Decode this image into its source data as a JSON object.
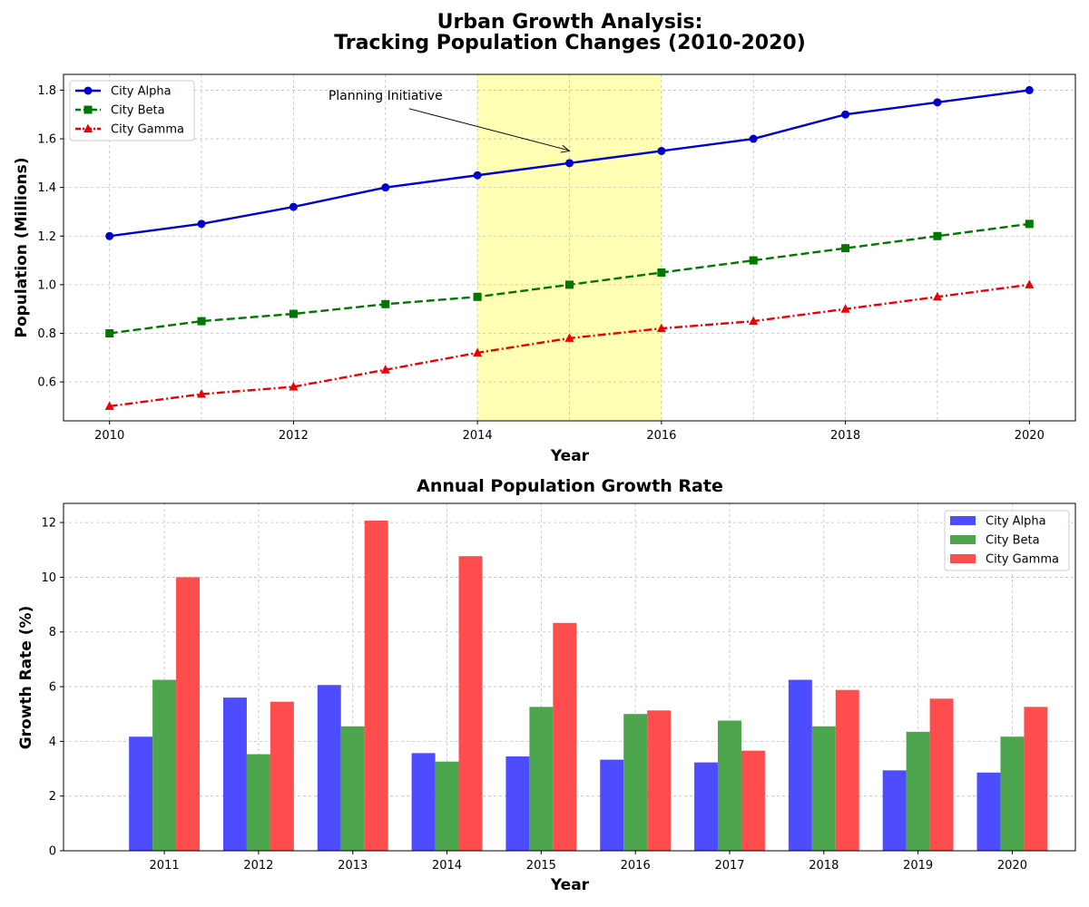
{
  "figure": {
    "title_line1": "Urban Growth Analysis:",
    "title_line2": "Tracking Population Changes (2010-2020)"
  },
  "chart_data": [
    {
      "type": "line",
      "title": "",
      "xlabel": "Year",
      "ylabel": "Population (Millions)",
      "x": [
        2010,
        2011,
        2012,
        2013,
        2014,
        2015,
        2016,
        2017,
        2018,
        2019,
        2020
      ],
      "xlim": [
        2009.5,
        2020.5
      ],
      "ylim": [
        0.44,
        1.865
      ],
      "xticks": [
        2010,
        2012,
        2014,
        2016,
        2018,
        2020
      ],
      "yticks": [
        "0.6",
        "0.8",
        "1.0",
        "1.2",
        "1.4",
        "1.6",
        "1.8"
      ],
      "grid": true,
      "legend_position": "upper-left",
      "series": [
        {
          "name": "City Alpha",
          "color": "#0000cc",
          "marker": "circle",
          "linestyle": "solid",
          "values": [
            1.2,
            1.25,
            1.32,
            1.4,
            1.45,
            1.5,
            1.55,
            1.6,
            1.7,
            1.75,
            1.8
          ]
        },
        {
          "name": "City Beta",
          "color": "#007700",
          "marker": "square",
          "linestyle": "dashed",
          "values": [
            0.8,
            0.85,
            0.88,
            0.92,
            0.95,
            1.0,
            1.05,
            1.1,
            1.15,
            1.2,
            1.25
          ]
        },
        {
          "name": "City Gamma",
          "color": "#ee0000",
          "marker": "triangle",
          "linestyle": "dashdot",
          "values": [
            0.5,
            0.55,
            0.58,
            0.65,
            0.72,
            0.78,
            0.82,
            0.85,
            0.9,
            0.95,
            1.0
          ]
        }
      ],
      "highlight_span": {
        "x_start": 2014,
        "x_end": 2016,
        "color": "#ffff99"
      },
      "annotation": {
        "text": "Planning Initiative",
        "text_x": 2013,
        "text_y": 1.75,
        "arrow_x": 2015,
        "arrow_y": 1.55
      }
    },
    {
      "type": "bar",
      "title": "Annual Population Growth Rate",
      "xlabel": "Year",
      "ylabel": "Growth Rate (%)",
      "categories": [
        "2011",
        "2012",
        "2013",
        "2014",
        "2015",
        "2016",
        "2017",
        "2018",
        "2019",
        "2020"
      ],
      "ylim": [
        0,
        12.7
      ],
      "yticks": [
        "0",
        "2",
        "4",
        "6",
        "8",
        "10",
        "12"
      ],
      "grid": true,
      "legend_position": "upper-right",
      "series": [
        {
          "name": "City Alpha",
          "color": "#4d4dff",
          "values": [
            4.17,
            5.6,
            6.06,
            3.57,
            3.45,
            3.33,
            3.23,
            6.25,
            2.94,
            2.86
          ]
        },
        {
          "name": "City Beta",
          "color": "#4da64d",
          "values": [
            6.25,
            3.53,
            4.55,
            3.26,
            5.26,
            5.0,
            4.76,
            4.55,
            4.35,
            4.17
          ]
        },
        {
          "name": "City Gamma",
          "color": "#ff4d4d",
          "values": [
            10.0,
            5.45,
            12.07,
            10.77,
            8.33,
            5.13,
            3.66,
            5.88,
            5.56,
            5.26
          ]
        }
      ]
    }
  ]
}
